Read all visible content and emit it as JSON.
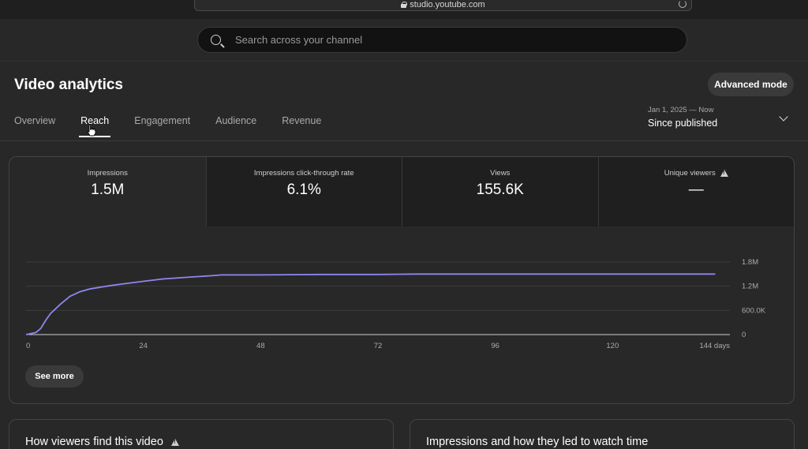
{
  "browser": {
    "url": "studio.youtube.com"
  },
  "search": {
    "placeholder": "Search across your channel"
  },
  "page": {
    "title": "Video analytics",
    "advanced_mode": "Advanced mode"
  },
  "tabs": [
    {
      "label": "Overview",
      "active": false
    },
    {
      "label": "Reach",
      "active": true
    },
    {
      "label": "Engagement",
      "active": false
    },
    {
      "label": "Audience",
      "active": false
    },
    {
      "label": "Revenue",
      "active": false
    }
  ],
  "date_range": {
    "sub": "Jan 1, 2025 — Now",
    "main": "Since published"
  },
  "metrics": [
    {
      "label": "Impressions",
      "value": "1.5M",
      "warning": false
    },
    {
      "label": "Impressions click-through rate",
      "value": "6.1%",
      "warning": false
    },
    {
      "label": "Views",
      "value": "155.6K",
      "warning": false
    },
    {
      "label": "Unique viewers",
      "value": "—",
      "warning": true
    }
  ],
  "see_more": "See more",
  "bottom_cards": [
    {
      "title": "How viewers find this video",
      "warning": true
    },
    {
      "title": "Impressions and how they led to watch time",
      "warning": false
    }
  ],
  "colors": {
    "line": "#8f86f0",
    "background": "#282828"
  },
  "chart_data": {
    "type": "line",
    "xlabel": "",
    "ylabel": "",
    "x_ticks": [
      "0",
      "24",
      "48",
      "72",
      "96",
      "120",
      "144 days"
    ],
    "y_ticks": [
      "0",
      "600.0K",
      "1.2M",
      "1.8M"
    ],
    "xlim": [
      0,
      144
    ],
    "ylim": [
      0,
      1800000
    ],
    "grid": true,
    "series": [
      {
        "x": [
          0,
          2,
          3,
          4,
          5,
          7,
          9,
          11,
          13,
          15,
          17,
          20,
          24,
          28,
          33,
          38,
          40,
          48,
          60,
          72,
          80,
          96,
          110,
          120,
          130,
          141
        ],
        "y": [
          0,
          50000,
          150000,
          350000,
          520000,
          750000,
          950000,
          1060000,
          1130000,
          1170000,
          1210000,
          1260000,
          1320000,
          1380000,
          1420000,
          1460000,
          1480000,
          1480000,
          1490000,
          1490000,
          1500000,
          1500000,
          1500000,
          1500000,
          1500000,
          1500000
        ]
      }
    ]
  }
}
